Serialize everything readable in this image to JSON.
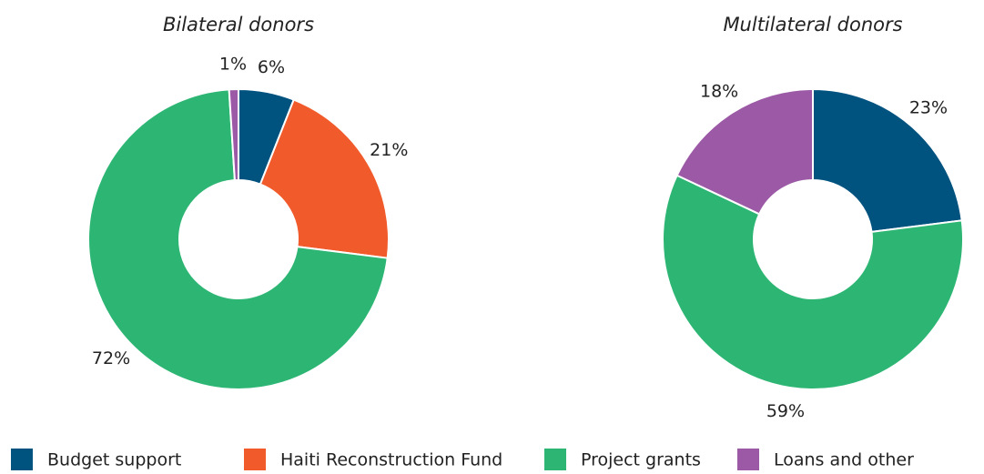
{
  "chart_data": [
    {
      "type": "pie",
      "title": "Bilateral donors",
      "categories": [
        "Budget support",
        "Haiti Reconstruction Fund",
        "Project grants",
        "Loans and other"
      ],
      "values": [
        6,
        21,
        72,
        1
      ],
      "value_labels": [
        "6%",
        "21%",
        "72%",
        "1%"
      ],
      "colors": [
        "#00527f",
        "#f15a2b",
        "#2db673",
        "#9b59a6"
      ]
    },
    {
      "type": "pie",
      "title": "Multilateral donors",
      "categories": [
        "Budget support",
        "Project grants",
        "Loans and other"
      ],
      "values": [
        23,
        59,
        18
      ],
      "value_labels": [
        "23%",
        "59%",
        "18%"
      ],
      "colors": [
        "#00527f",
        "#2db673",
        "#9b59a6"
      ]
    }
  ],
  "legend": [
    {
      "name": "Budget support",
      "color": "#00527f"
    },
    {
      "name": "Haiti Reconstruction Fund",
      "color": "#f15a2b"
    },
    {
      "name": "Project grants",
      "color": "#2db673"
    },
    {
      "name": "Loans and other",
      "color": "#9b59a6"
    }
  ]
}
